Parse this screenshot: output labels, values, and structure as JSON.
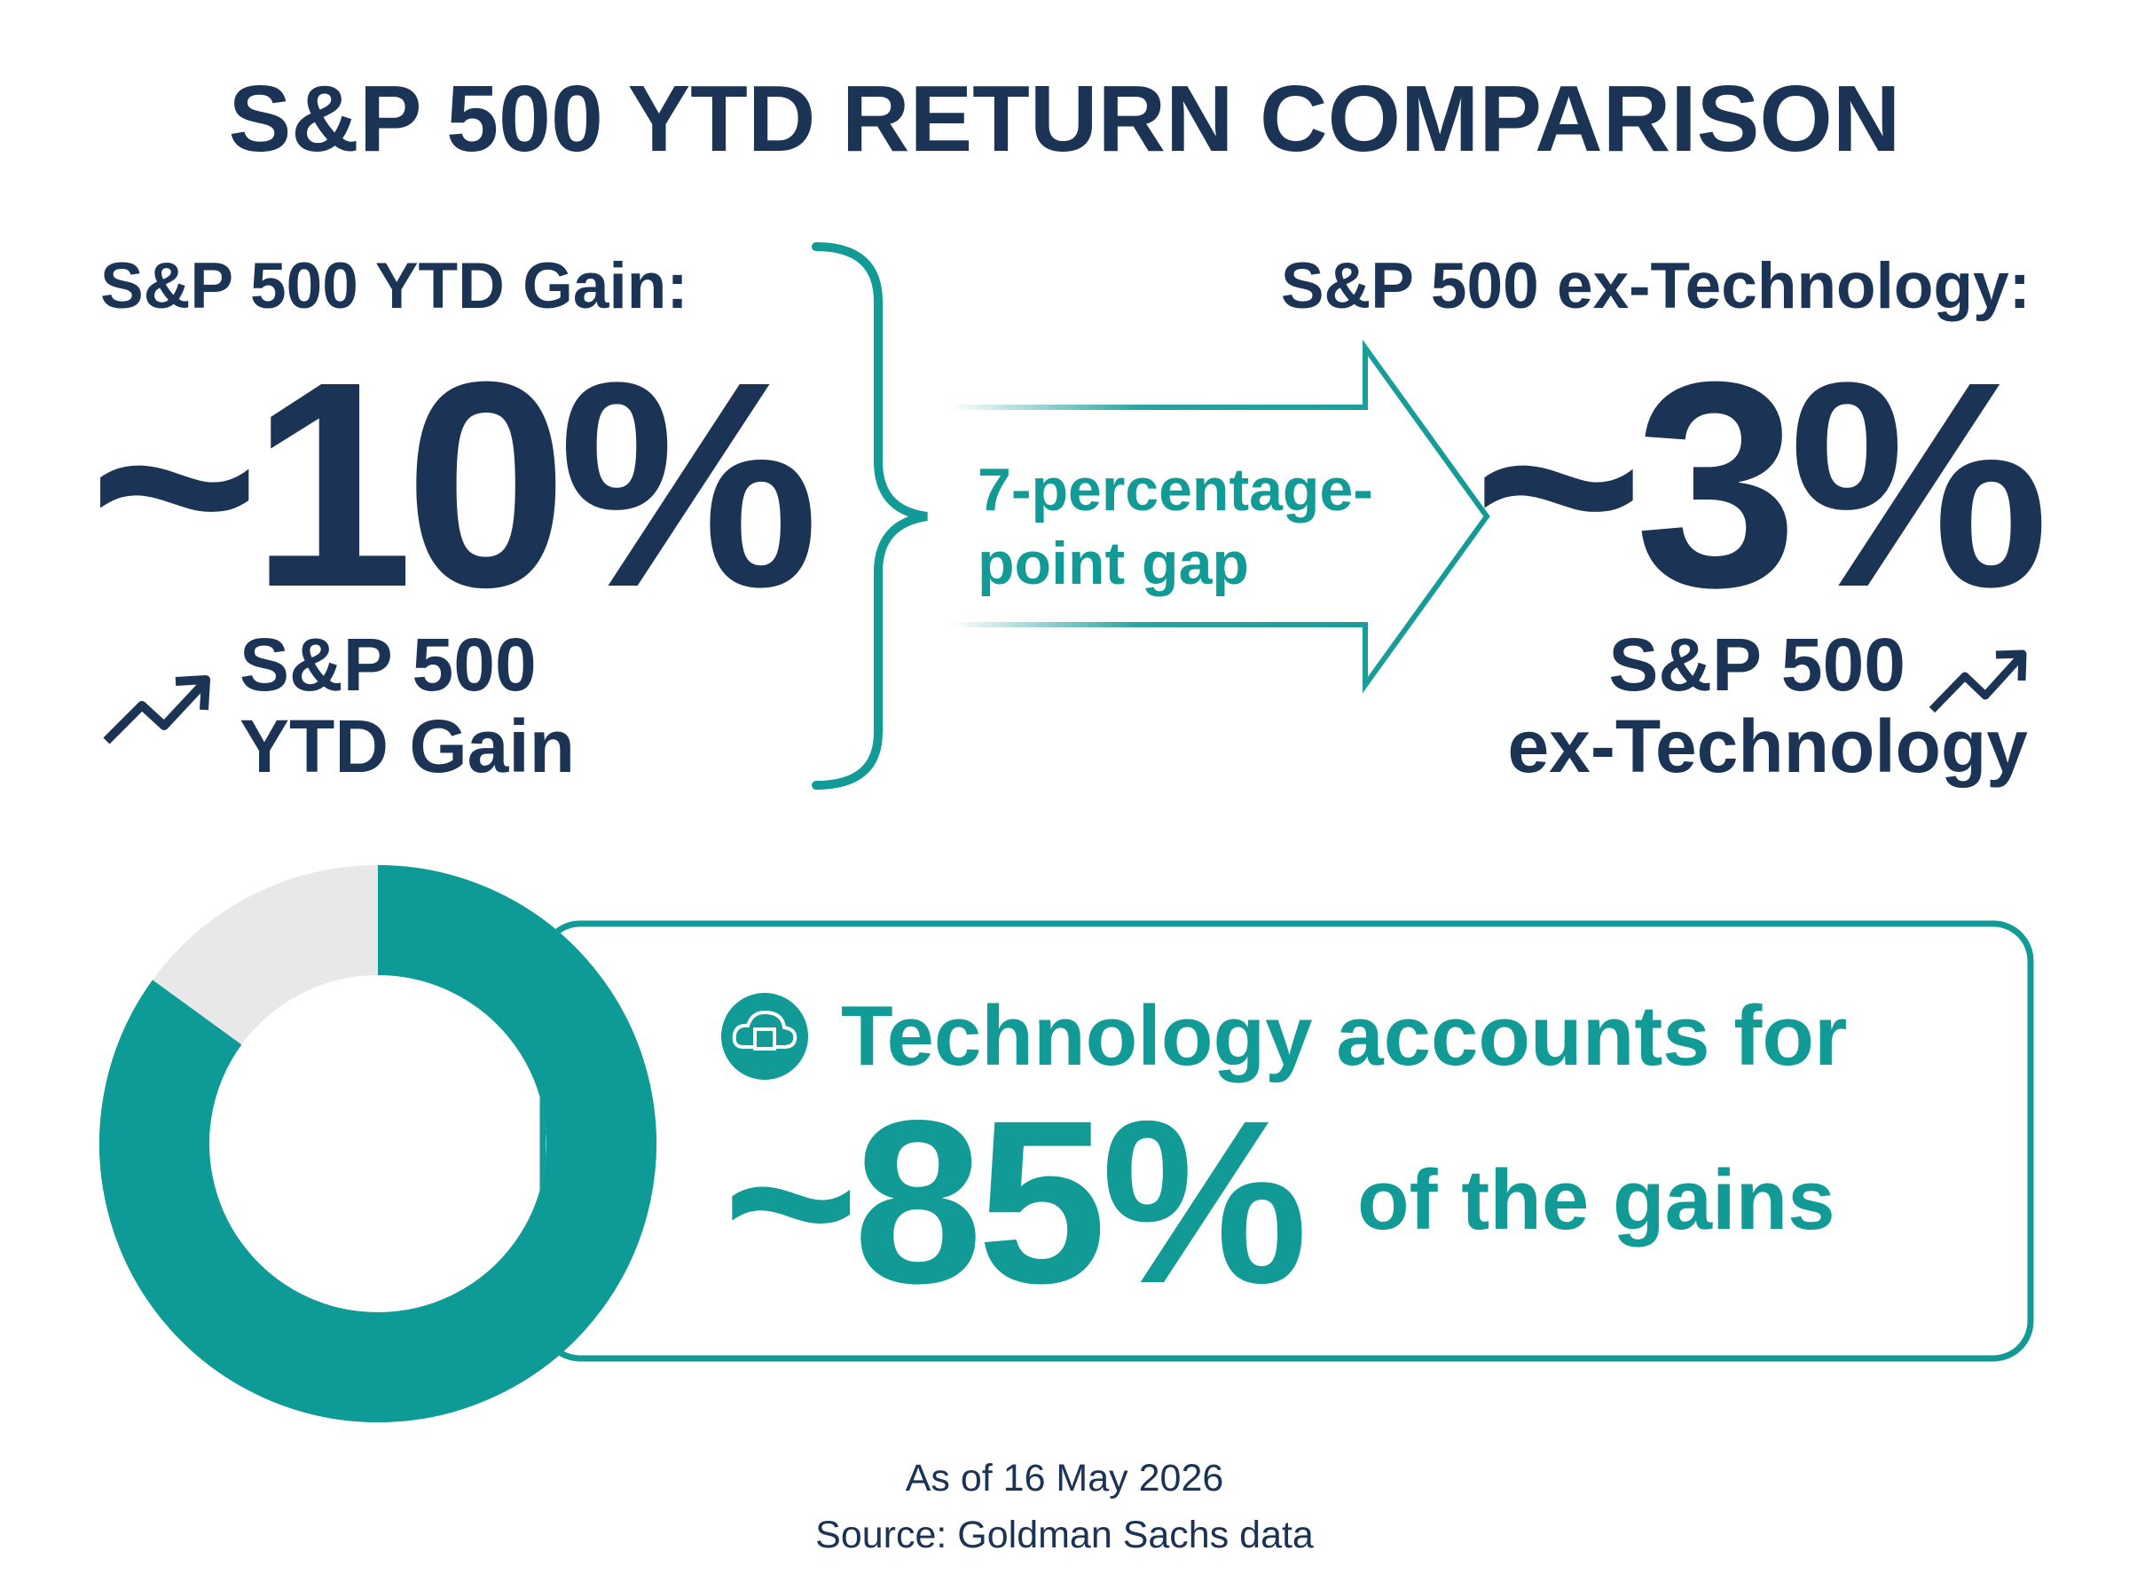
{
  "title": "S&P 500 YTD RETURN COMPARISON",
  "left": {
    "heading": "S&P 500 YTD Gain:",
    "figure": "~10%",
    "caption_lines": [
      "S&P 500",
      "YTD Gain"
    ]
  },
  "gap": {
    "lines": [
      "7-percentage-",
      "point gap"
    ]
  },
  "right": {
    "heading": "S&P 500 ex-Technology:",
    "figure": "~3%",
    "caption_lines": [
      "S&P 500",
      "ex-Technology"
    ]
  },
  "highlight": {
    "lead": "Technology accounts for",
    "value": 85,
    "value_label": "~85%",
    "tail": "of the gains"
  },
  "footer": {
    "date": "As of 16 May 2026",
    "source": "Source: Goldman Sachs data"
  }
}
